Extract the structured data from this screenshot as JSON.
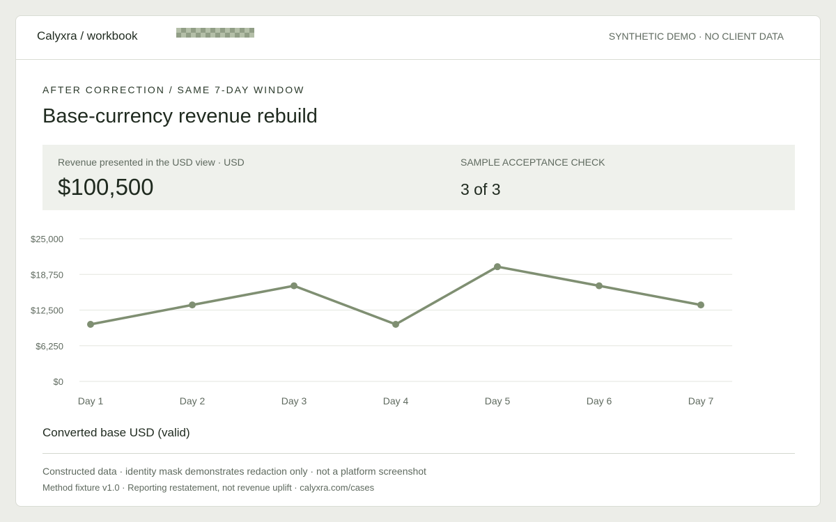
{
  "header": {
    "brand": "Calyxra / workbook",
    "notice": "SYNTHETIC DEMO · NO CLIENT DATA"
  },
  "eyebrow": "AFTER CORRECTION / SAME 7-DAY WINDOW",
  "title": "Base-currency revenue rebuild",
  "metrics": {
    "revenue_label": "Revenue presented in the USD view · USD",
    "revenue_value": "$100,500",
    "check_label": "SAMPLE ACCEPTANCE CHECK",
    "check_value": "3 of 3"
  },
  "chart_caption": "Converted base USD (valid)",
  "footer": {
    "line1": "Constructed data · identity mask demonstrates redaction only · not a platform screenshot",
    "line2": "Method fixture v1.0 · Reporting restatement, not revenue uplift · calyxra.com/cases"
  },
  "colors": {
    "line": "#7f8f72",
    "grid": "#e3e6df",
    "axis_text": "#5f6a5f"
  },
  "chart_data": {
    "type": "line",
    "categories": [
      "Day 1",
      "Day 2",
      "Day 3",
      "Day 4",
      "Day 5",
      "Day 6",
      "Day 7"
    ],
    "series": [
      {
        "values": [
          10000,
          13400,
          16750,
          10000,
          20100,
          16750,
          13400
        ]
      }
    ],
    "ylim": [
      0,
      25000
    ],
    "yticks": [
      0,
      6250,
      12500,
      18750,
      25000
    ],
    "ytick_labels": [
      "$0",
      "$6,250",
      "$12,500",
      "$18,750",
      "$25,000"
    ],
    "grid": true,
    "markers": true
  }
}
